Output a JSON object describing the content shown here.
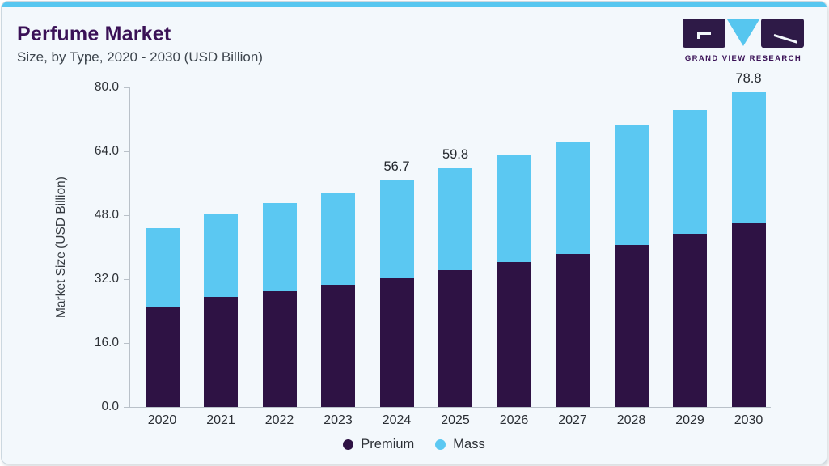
{
  "header": {
    "title": "Perfume Market",
    "subtitle": "Size, by Type, 2020 - 2030 (USD Billion)"
  },
  "logo": {
    "caption": "GRAND VIEW RESEARCH",
    "purple": "#2e1a47",
    "blue": "#56c6ef"
  },
  "colors": {
    "card_background": "#f3f8fc",
    "accent_bar": "#58c7f0",
    "axis": "#b9c1c9",
    "title_text": "#3a1156",
    "premium": "#2e1244",
    "mass": "#5bc8f2"
  },
  "chart_data": {
    "type": "bar",
    "stacked": true,
    "title": "Perfume Market Size, by Type, 2020 - 2030 (USD Billion)",
    "xlabel": "",
    "ylabel": "Market Size (USD Billion)",
    "ylim": [
      0,
      80
    ],
    "yticks": [
      "0.0",
      "16.0",
      "32.0",
      "48.0",
      "64.0",
      "80.0"
    ],
    "grid": false,
    "legend_position": "bottom",
    "categories": [
      "2020",
      "2021",
      "2022",
      "2023",
      "2024",
      "2025",
      "2026",
      "2027",
      "2028",
      "2029",
      "2030"
    ],
    "series": [
      {
        "name": "Premium",
        "color": "#2e1244",
        "values": [
          25.2,
          27.5,
          29.0,
          30.6,
          32.3,
          34.2,
          36.2,
          38.3,
          40.6,
          43.3,
          45.9
        ]
      },
      {
        "name": "Mass",
        "color": "#5bc8f2",
        "values": [
          19.5,
          21.0,
          22.1,
          23.1,
          24.4,
          25.6,
          26.8,
          28.1,
          29.8,
          31.1,
          32.9
        ]
      }
    ],
    "totals": [
      44.7,
      48.5,
      51.1,
      53.7,
      56.7,
      59.8,
      63.0,
      66.4,
      70.4,
      74.4,
      78.8
    ],
    "annotations": [
      {
        "category": "2024",
        "text": "56.7"
      },
      {
        "category": "2025",
        "text": "59.8"
      },
      {
        "category": "2030",
        "text": "78.8"
      }
    ]
  }
}
